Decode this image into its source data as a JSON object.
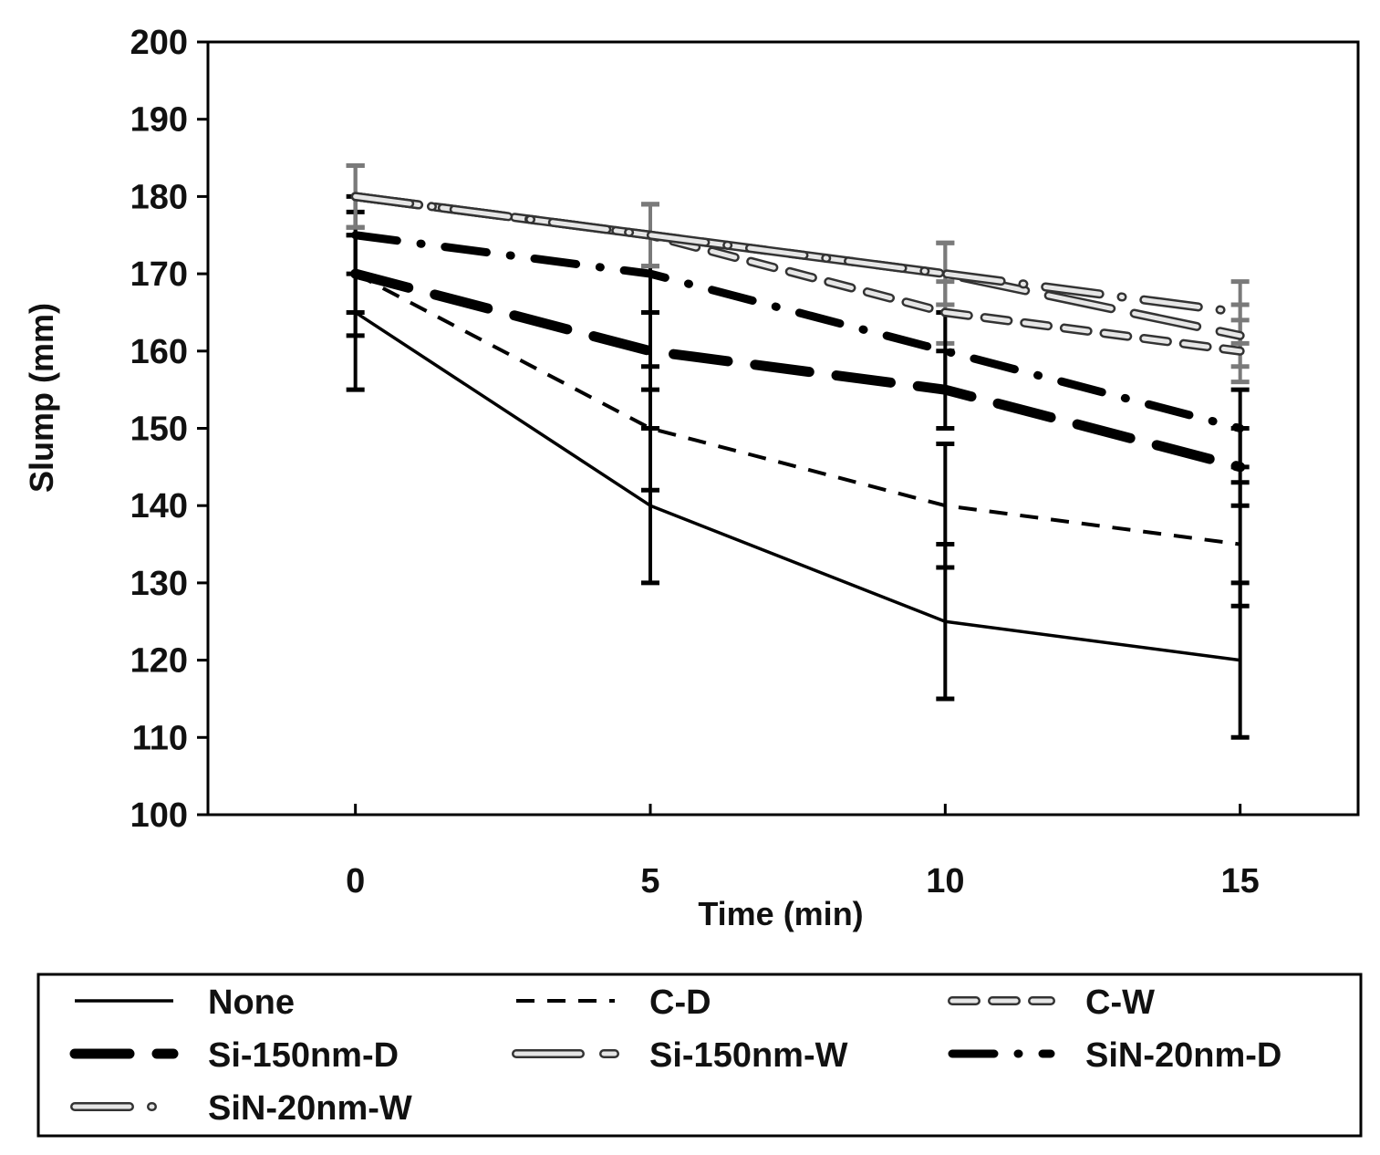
{
  "chart_data": {
    "type": "line",
    "title": "",
    "xlabel": "Time (min)",
    "ylabel": "Slump (mm)",
    "x": [
      0,
      5,
      10,
      15
    ],
    "xticks": [
      0,
      5,
      10,
      15
    ],
    "xlim": [
      -2.5,
      17
    ],
    "ylim": [
      100,
      200
    ],
    "yticks": [
      100,
      110,
      120,
      130,
      140,
      150,
      160,
      170,
      180,
      190,
      200
    ],
    "grid": false,
    "legend_position": "bottom",
    "series": [
      {
        "name": "None",
        "values": [
          165,
          140,
          125,
          120
        ],
        "error": [
          10,
          10,
          10,
          10
        ],
        "style": "solid-thin",
        "color": "#000000"
      },
      {
        "name": "C-D",
        "values": [
          170,
          150,
          140,
          135
        ],
        "error": [
          8,
          8,
          8,
          8
        ],
        "style": "dash",
        "color": "#000000"
      },
      {
        "name": "C-W",
        "values": [
          180,
          175,
          165,
          160
        ],
        "error": [
          4,
          4,
          4,
          4
        ],
        "style": "hollow-dash",
        "color": "#888888"
      },
      {
        "name": "Si-150nm-D",
        "values": [
          170,
          160,
          155,
          145
        ],
        "error": [
          5,
          5,
          5,
          5
        ],
        "style": "thick-dash",
        "color": "#000000"
      },
      {
        "name": "Si-150nm-W",
        "values": [
          180,
          175,
          170,
          162
        ],
        "error": [
          4,
          4,
          4,
          4
        ],
        "style": "hollow-long-dash",
        "color": "#888888"
      },
      {
        "name": "SiN-20nm-D",
        "values": [
          175,
          170,
          160,
          150
        ],
        "error": [
          5,
          5,
          5,
          5
        ],
        "style": "dash-dot",
        "color": "#000000"
      },
      {
        "name": "SiN-20nm-W",
        "values": [
          180,
          175,
          170,
          165
        ],
        "error": [
          4,
          4,
          4,
          4
        ],
        "style": "hollow-dash-dot",
        "color": "#888888"
      }
    ]
  }
}
